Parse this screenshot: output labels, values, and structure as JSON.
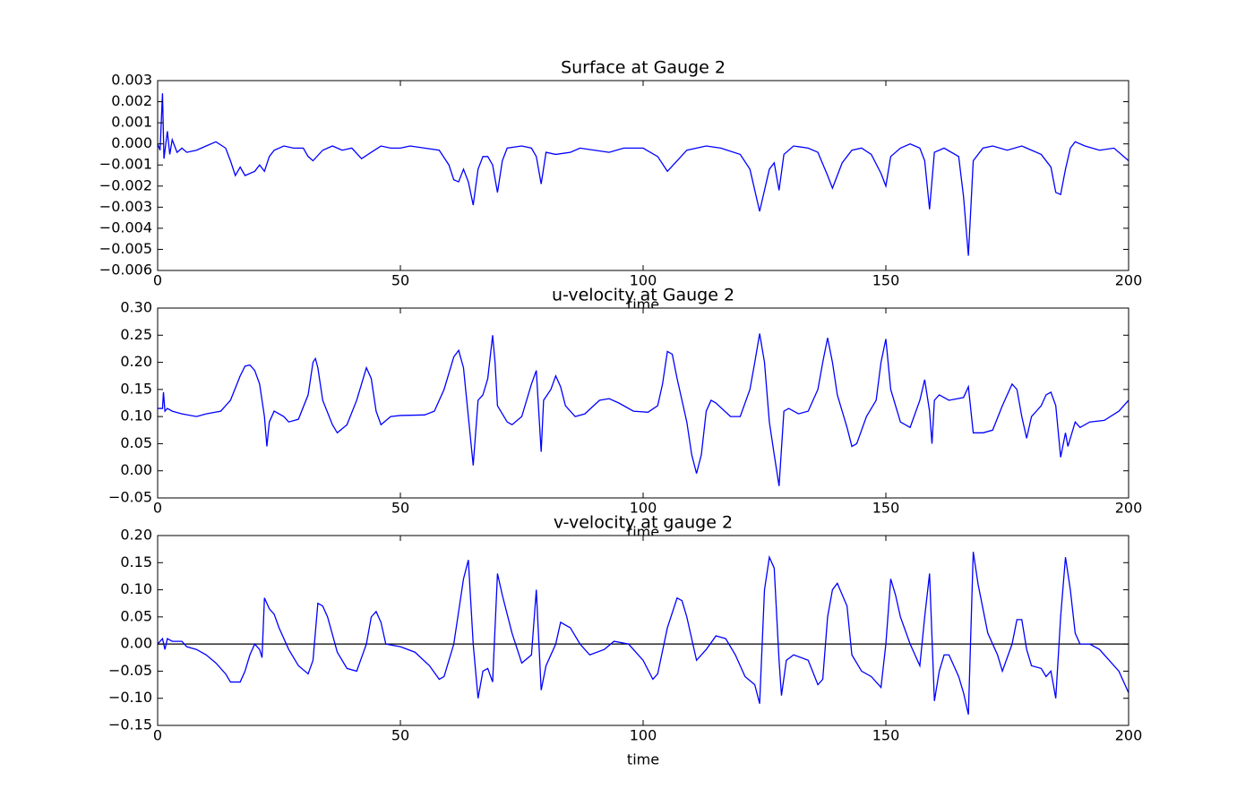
{
  "chart_data": [
    {
      "type": "line",
      "title": "Surface at Gauge 2",
      "xlabel": "time",
      "x": [
        0,
        0.5,
        1,
        1.3,
        2,
        2.5,
        3,
        4,
        5,
        6,
        8,
        10,
        12,
        14,
        15,
        16,
        17,
        18,
        20,
        21,
        22,
        23,
        24,
        26,
        28,
        30,
        31,
        32,
        34,
        36,
        38,
        40,
        42,
        44,
        46,
        48,
        50,
        52,
        55,
        58,
        60,
        61,
        62,
        63,
        64,
        65,
        66,
        67,
        68,
        69,
        70,
        71,
        72,
        75,
        77,
        78,
        79,
        80,
        82,
        85,
        87,
        90,
        93,
        96,
        100,
        103,
        105,
        107,
        109,
        111,
        113,
        116,
        120,
        122,
        124,
        126,
        127,
        128,
        129,
        131,
        134,
        136,
        138,
        139,
        141,
        143,
        145,
        147,
        149,
        150,
        151,
        153,
        155,
        157,
        158,
        159,
        160,
        162,
        165,
        166,
        167,
        168,
        170,
        172,
        175,
        178,
        182,
        184,
        185,
        186,
        187,
        188,
        189,
        191,
        194,
        197,
        200
      ],
      "series": [
        {
          "color": "#0000ff",
          "values": [
            0,
            -0.0003,
            0.0024,
            -0.0007,
            0.0006,
            -0.0005,
            0.0002,
            -0.0004,
            -0.0002,
            -0.0004,
            -0.0003,
            -0.0001,
            0.0001,
            -0.0002,
            -0.0008,
            -0.0015,
            -0.0011,
            -0.0015,
            -0.0013,
            -0.001,
            -0.0013,
            -0.0006,
            -0.0003,
            -0.0001,
            -0.0002,
            -0.0002,
            -0.0006,
            -0.0008,
            -0.0003,
            -0.0001,
            -0.0003,
            -0.0002,
            -0.0007,
            -0.0004,
            -0.0001,
            -0.0002,
            -0.0002,
            -0.0001,
            -0.0002,
            -0.0003,
            -0.001,
            -0.0017,
            -0.0018,
            -0.0012,
            -0.0018,
            -0.0029,
            -0.0012,
            -0.0006,
            -0.0006,
            -0.001,
            -0.0023,
            -0.0008,
            -0.0002,
            -0.0001,
            -0.0002,
            -0.0006,
            -0.0019,
            -0.0004,
            -0.0005,
            -0.0004,
            -0.0002,
            -0.0003,
            -0.0004,
            -0.0002,
            -0.0002,
            -0.0006,
            -0.0013,
            -0.0008,
            -0.0003,
            -0.0002,
            -0.0001,
            -0.0002,
            -0.0005,
            -0.0012,
            -0.0032,
            -0.0012,
            -0.0009,
            -0.0022,
            -0.0005,
            -0.0001,
            -0.0002,
            -0.0004,
            -0.0015,
            -0.0021,
            -0.0009,
            -0.0003,
            -0.0002,
            -0.0005,
            -0.0014,
            -0.002,
            -0.0006,
            -0.0002,
            0,
            -0.0002,
            -0.0008,
            -0.0031,
            -0.0004,
            -0.0002,
            -0.0006,
            -0.0025,
            -0.0053,
            -0.0008,
            -0.0002,
            -0.0001,
            -0.0003,
            -0.0001,
            -0.0005,
            -0.0011,
            -0.0023,
            -0.0024,
            -0.0012,
            -0.0002,
            0.0001,
            -0.0001,
            -0.0003,
            -0.0002,
            -0.0008
          ]
        }
      ],
      "xlim": [
        0,
        200
      ],
      "xticks": [
        0,
        50,
        100,
        150,
        200
      ],
      "ylim": [
        -0.006,
        0.003
      ],
      "yticks": [
        {
          "value": 0.003,
          "label": "0.003"
        },
        {
          "value": 0.002,
          "label": "0.002"
        },
        {
          "value": 0.001,
          "label": "0.001"
        },
        {
          "value": 0,
          "label": "0.000"
        },
        {
          "value": -0.001,
          "label": "−0.001"
        },
        {
          "value": -0.002,
          "label": "−0.002"
        },
        {
          "value": -0.003,
          "label": "−0.003"
        },
        {
          "value": -0.004,
          "label": "−0.004"
        },
        {
          "value": -0.005,
          "label": "−0.005"
        },
        {
          "value": -0.006,
          "label": "−0.006"
        }
      ]
    },
    {
      "type": "line",
      "title": "u-velocity at Gauge 2",
      "xlabel": "time",
      "x": [
        0,
        1,
        1.2,
        1.5,
        2,
        3,
        5,
        8,
        10,
        13,
        15,
        17,
        18,
        19,
        20,
        21,
        22,
        22.5,
        23,
        24,
        26,
        27,
        29,
        31,
        32,
        32.5,
        33,
        34,
        36,
        37,
        39,
        41,
        43,
        44,
        45,
        46,
        48,
        50,
        55,
        57,
        59,
        61,
        62,
        63,
        64,
        65,
        66,
        67,
        68,
        69,
        69.5,
        70,
        72,
        73,
        75,
        77,
        78,
        79,
        79.5,
        81,
        82,
        83,
        84,
        86,
        88,
        91,
        93,
        95,
        98,
        101,
        103,
        104,
        105,
        106,
        107,
        109,
        110,
        111,
        112,
        113,
        114,
        115,
        118,
        120,
        122,
        123,
        124,
        125,
        126,
        127,
        128,
        129,
        130,
        132,
        134,
        136,
        137,
        138,
        139,
        140,
        142,
        143,
        144,
        146,
        148,
        149,
        150,
        151,
        153,
        155,
        157,
        158,
        159,
        159.5,
        160,
        161,
        163,
        166,
        167,
        168,
        170,
        172,
        174,
        176,
        177,
        178,
        179,
        180,
        182,
        183,
        184,
        185,
        186,
        187,
        187.5,
        189,
        190,
        192,
        195,
        198,
        200
      ],
      "series": [
        {
          "color": "#0000ff",
          "values": [
            0.115,
            0.115,
            0.145,
            0.11,
            0.115,
            0.11,
            0.105,
            0.1,
            0.105,
            0.11,
            0.13,
            0.175,
            0.193,
            0.195,
            0.185,
            0.16,
            0.1,
            0.045,
            0.09,
            0.11,
            0.1,
            0.09,
            0.095,
            0.14,
            0.2,
            0.207,
            0.19,
            0.13,
            0.085,
            0.07,
            0.085,
            0.13,
            0.19,
            0.17,
            0.11,
            0.085,
            0.1,
            0.102,
            0.103,
            0.11,
            0.15,
            0.21,
            0.222,
            0.19,
            0.1,
            0.01,
            0.13,
            0.14,
            0.17,
            0.25,
            0.2,
            0.12,
            0.09,
            0.085,
            0.1,
            0.16,
            0.185,
            0.035,
            0.13,
            0.15,
            0.175,
            0.155,
            0.12,
            0.1,
            0.105,
            0.13,
            0.133,
            0.125,
            0.11,
            0.108,
            0.12,
            0.16,
            0.22,
            0.215,
            0.17,
            0.09,
            0.03,
            -0.005,
            0.03,
            0.11,
            0.13,
            0.125,
            0.1,
            0.1,
            0.15,
            0.2,
            0.253,
            0.2,
            0.09,
            0.03,
            -0.028,
            0.11,
            0.115,
            0.105,
            0.11,
            0.15,
            0.2,
            0.245,
            0.2,
            0.14,
            0.08,
            0.045,
            0.05,
            0.1,
            0.13,
            0.2,
            0.243,
            0.15,
            0.09,
            0.08,
            0.13,
            0.168,
            0.11,
            0.05,
            0.13,
            0.14,
            0.13,
            0.135,
            0.155,
            0.07,
            0.07,
            0.075,
            0.12,
            0.16,
            0.15,
            0.1,
            0.06,
            0.1,
            0.12,
            0.14,
            0.145,
            0.12,
            0.025,
            0.07,
            0.045,
            0.09,
            0.08,
            0.09,
            0.093,
            0.11,
            0.13
          ]
        }
      ],
      "xlim": [
        0,
        200
      ],
      "xticks": [
        0,
        50,
        100,
        150,
        200
      ],
      "ylim": [
        -0.05,
        0.3
      ],
      "yticks": [
        {
          "value": 0.3,
          "label": "0.30"
        },
        {
          "value": 0.25,
          "label": "0.25"
        },
        {
          "value": 0.2,
          "label": "0.20"
        },
        {
          "value": 0.15,
          "label": "0.15"
        },
        {
          "value": 0.1,
          "label": "0.10"
        },
        {
          "value": 0.05,
          "label": "0.05"
        },
        {
          "value": 0,
          "label": "0.00"
        },
        {
          "value": -0.05,
          "label": "−0.05"
        }
      ]
    },
    {
      "type": "line",
      "title": "v-velocity at gauge 2",
      "xlabel": "time",
      "x": [
        0,
        1,
        1.5,
        2,
        3,
        5,
        6,
        8,
        10,
        12,
        14,
        15,
        17,
        18,
        19,
        20,
        21,
        21.5,
        22,
        23,
        24,
        25,
        27,
        29,
        31,
        32,
        33,
        34,
        35,
        37,
        39,
        41,
        43,
        44,
        45,
        46,
        47,
        50,
        53,
        56,
        58,
        59,
        61,
        63,
        64,
        65,
        66,
        67,
        68,
        69,
        70,
        71,
        73,
        75,
        77,
        78,
        79,
        80,
        82,
        83,
        85,
        87,
        89,
        92,
        94,
        97,
        100,
        102,
        103,
        105,
        107,
        108,
        109,
        111,
        113,
        115,
        117,
        119,
        121,
        123,
        124,
        125,
        126,
        127,
        128,
        128.5,
        129.5,
        131,
        134,
        136,
        137,
        138,
        139,
        140,
        142,
        143,
        145,
        147,
        149,
        150,
        151,
        152,
        153,
        155,
        157,
        158,
        159,
        160,
        161,
        162,
        163,
        165,
        166,
        167,
        168,
        169,
        171,
        173,
        174,
        176,
        177,
        178,
        179,
        180,
        182,
        183,
        184,
        185,
        186,
        187,
        188,
        189,
        190,
        192,
        194,
        196,
        198,
        200
      ],
      "series": [
        {
          "color": "#0000ff",
          "values": [
            0,
            0.01,
            -0.01,
            0.01,
            0.005,
            0.005,
            -0.005,
            -0.01,
            -0.02,
            -0.035,
            -0.055,
            -0.07,
            -0.07,
            -0.05,
            -0.02,
            0,
            -0.01,
            -0.025,
            0.085,
            0.065,
            0.055,
            0.03,
            -0.01,
            -0.04,
            -0.055,
            -0.03,
            0.075,
            0.07,
            0.05,
            -0.015,
            -0.045,
            -0.05,
            0,
            0.05,
            0.06,
            0.04,
            0,
            -0.005,
            -0.015,
            -0.04,
            -0.065,
            -0.06,
            0,
            0.12,
            0.155,
            0,
            -0.1,
            -0.05,
            -0.045,
            -0.07,
            0.13,
            0.09,
            0.02,
            -0.035,
            -0.02,
            0.1,
            -0.085,
            -0.04,
            0,
            0.04,
            0.03,
            0,
            -0.02,
            -0.01,
            0.005,
            0,
            -0.03,
            -0.065,
            -0.055,
            0.03,
            0.085,
            0.08,
            0.05,
            -0.03,
            -0.01,
            0.015,
            0.01,
            -0.02,
            -0.06,
            -0.075,
            -0.11,
            0.1,
            0.16,
            0.14,
            -0.03,
            -0.095,
            -0.03,
            -0.02,
            -0.03,
            -0.075,
            -0.065,
            0.05,
            0.1,
            0.112,
            0.07,
            -0.02,
            -0.05,
            -0.06,
            -0.08,
            0,
            0.12,
            0.09,
            0.05,
            0,
            -0.04,
            0.05,
            0.13,
            -0.105,
            -0.05,
            -0.02,
            -0.02,
            -0.06,
            -0.09,
            -0.13,
            0.17,
            0.11,
            0.02,
            -0.02,
            -0.05,
            0,
            0.045,
            0.045,
            -0.01,
            -0.04,
            -0.045,
            -0.06,
            -0.05,
            -0.1,
            0.05,
            0.16,
            0.1,
            0.02,
            0,
            0,
            -0.01,
            -0.03,
            -0.05,
            -0.09
          ]
        }
      ],
      "hline": 0,
      "xlim": [
        0,
        200
      ],
      "xticks": [
        0,
        50,
        100,
        150,
        200
      ],
      "ylim": [
        -0.15,
        0.2
      ],
      "yticks": [
        {
          "value": 0.2,
          "label": "0.20"
        },
        {
          "value": 0.15,
          "label": "0.15"
        },
        {
          "value": 0.1,
          "label": "0.10"
        },
        {
          "value": 0.05,
          "label": "0.05"
        },
        {
          "value": 0,
          "label": "0.00"
        },
        {
          "value": -0.05,
          "label": "−0.05"
        },
        {
          "value": -0.1,
          "label": "−0.10"
        },
        {
          "value": -0.15,
          "label": "−0.15"
        }
      ]
    }
  ]
}
